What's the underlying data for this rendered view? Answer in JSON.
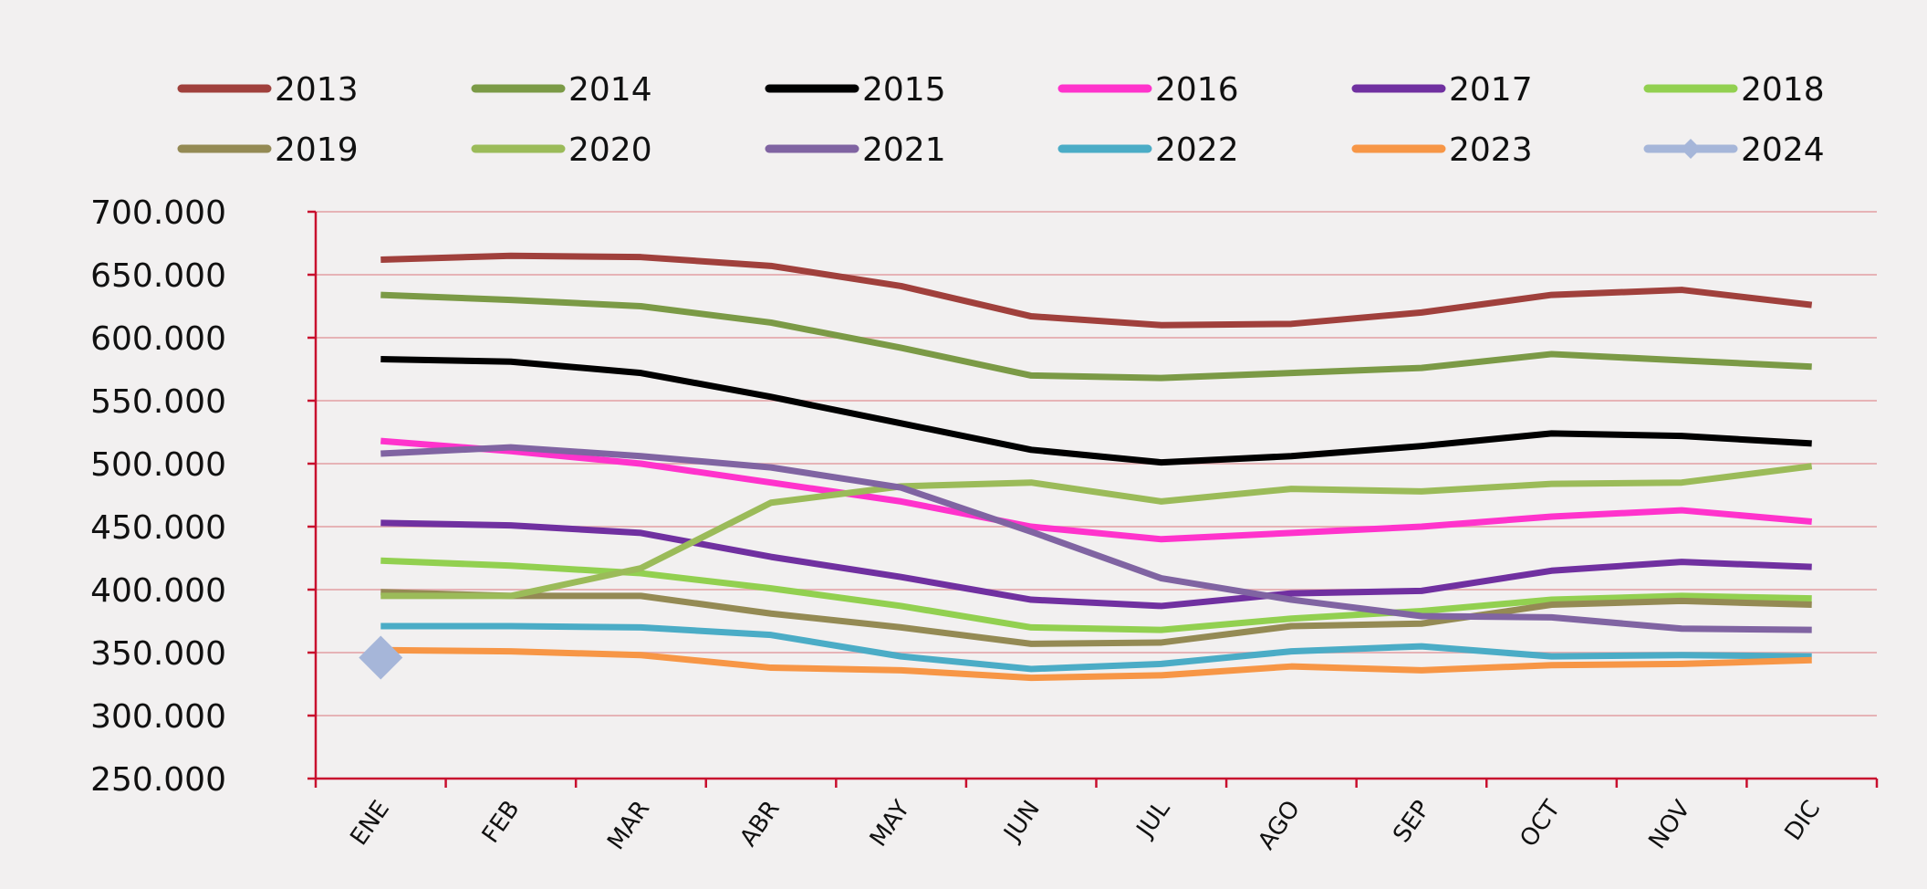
{
  "chart_data": {
    "type": "line",
    "categories": [
      "ENE",
      "FEB",
      "MAR",
      "ABR",
      "MAY",
      "JUN",
      "JUL",
      "AGO",
      "SEP",
      "OCT",
      "NOV",
      "DIC"
    ],
    "series": [
      {
        "name": "2013",
        "color": "#a0403c",
        "values": [
          662000,
          665000,
          664000,
          657000,
          641000,
          617000,
          610000,
          611000,
          620000,
          634000,
          638000,
          626000
        ]
      },
      {
        "name": "2014",
        "color": "#7b9a46",
        "values": [
          634000,
          630000,
          625000,
          612000,
          592000,
          570000,
          568000,
          572000,
          576000,
          587000,
          582000,
          577000
        ]
      },
      {
        "name": "2015",
        "color": "#000000",
        "values": [
          583000,
          581000,
          572000,
          553000,
          532000,
          511000,
          501000,
          506000,
          514000,
          524000,
          522000,
          516000
        ]
      },
      {
        "name": "2016",
        "color": "#ff33cc",
        "values": [
          518000,
          510000,
          500000,
          485000,
          470000,
          450000,
          440000,
          445000,
          450000,
          458000,
          463000,
          454000
        ]
      },
      {
        "name": "2017",
        "color": "#7030a0",
        "values": [
          453000,
          451000,
          445000,
          426000,
          410000,
          392000,
          387000,
          397000,
          399000,
          415000,
          422000,
          418000
        ]
      },
      {
        "name": "2018",
        "color": "#92d050",
        "values": [
          423000,
          419000,
          413000,
          401000,
          387000,
          370000,
          368000,
          377000,
          383000,
          392000,
          395000,
          393000
        ]
      },
      {
        "name": "2019",
        "color": "#948a54",
        "values": [
          398000,
          395000,
          395000,
          381000,
          370000,
          357000,
          358000,
          371000,
          373000,
          388000,
          391000,
          388000
        ]
      },
      {
        "name": "2020",
        "color": "#9bbb59",
        "values": [
          395000,
          395000,
          417000,
          469000,
          482000,
          485000,
          470000,
          480000,
          478000,
          484000,
          485000,
          498000
        ]
      },
      {
        "name": "2021",
        "color": "#8064a2",
        "values": [
          508000,
          513000,
          506000,
          497000,
          481000,
          446000,
          409000,
          392000,
          379000,
          378000,
          369000,
          368000
        ]
      },
      {
        "name": "2022",
        "color": "#4bacc6",
        "values": [
          371000,
          371000,
          370000,
          364000,
          347000,
          337000,
          341000,
          351000,
          355000,
          347000,
          348000,
          347000
        ]
      },
      {
        "name": "2023",
        "color": "#f79646",
        "values": [
          352000,
          351000,
          348000,
          338000,
          336000,
          330000,
          332000,
          339000,
          336000,
          340000,
          341000,
          344000
        ]
      },
      {
        "name": "2024",
        "color": "#a6b6d9",
        "marker": "diamond",
        "values": [
          346000,
          null,
          null,
          null,
          null,
          null,
          null,
          null,
          null,
          null,
          null,
          null
        ]
      }
    ],
    "ylim": [
      250000,
      700000
    ],
    "yticks": [
      {
        "value": 250000,
        "label": "250.000"
      },
      {
        "value": 300000,
        "label": "300.000"
      },
      {
        "value": 350000,
        "label": "350.000"
      },
      {
        "value": 400000,
        "label": "400.000"
      },
      {
        "value": 450000,
        "label": "450.000"
      },
      {
        "value": 500000,
        "label": "500.000"
      },
      {
        "value": 550000,
        "label": "550.000"
      },
      {
        "value": 600000,
        "label": "600.000"
      },
      {
        "value": 650000,
        "label": "650.000"
      },
      {
        "value": 700000,
        "label": "700.000"
      }
    ],
    "grid": true,
    "legend": "top"
  }
}
